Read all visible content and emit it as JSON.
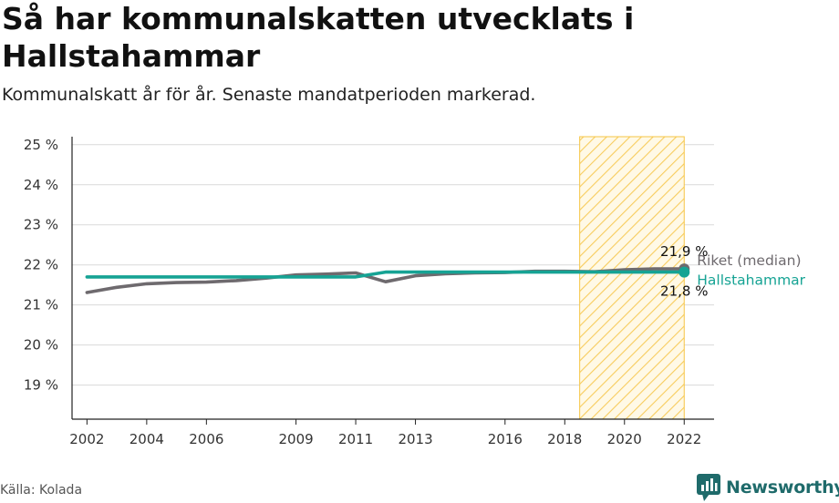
{
  "title": "Så har kommunalskatten utvecklats i Hallstahammar",
  "subtitle": "Kommunalskatt år för år. Senaste mandatperioden markerad.",
  "source": "Källa: Kolada",
  "brand": "Newsworthy",
  "colors": {
    "riket": "#6e6a6e",
    "hallstahammar": "#16a394",
    "highlight": "#f6c545",
    "grid": "#d9d9d9",
    "brand": "#1f6b6b"
  },
  "chart_data": {
    "type": "line",
    "title": "Så har kommunalskatten utvecklats i Hallstahammar",
    "xlabel": "",
    "ylabel": "",
    "ylim": [
      18.15,
      25.2
    ],
    "xlim": [
      2001.5,
      2023
    ],
    "y_ticks": [
      19,
      20,
      21,
      22,
      23,
      24,
      25
    ],
    "y_tick_labels": [
      "19 %",
      "20 %",
      "21 %",
      "22 %",
      "23 %",
      "24 %",
      "25 %"
    ],
    "x_ticks": [
      2002,
      2004,
      2006,
      2009,
      2011,
      2013,
      2016,
      2018,
      2020,
      2022
    ],
    "x_tick_labels": [
      "2002",
      "2004",
      "2006",
      "2009",
      "2011",
      "2013",
      "2016",
      "2018",
      "2020",
      "2022"
    ],
    "highlight_period": {
      "from": 2018.5,
      "to": 2022,
      "description": "Senaste mandatperioden"
    },
    "series": [
      {
        "name": "Riket (median)",
        "x": [
          2002,
          2003,
          2004,
          2005,
          2006,
          2007,
          2008,
          2009,
          2010,
          2011,
          2012,
          2013,
          2014,
          2015,
          2016,
          2017,
          2018,
          2019,
          2020,
          2021,
          2022
        ],
        "values": [
          21.31,
          21.44,
          21.53,
          21.56,
          21.57,
          21.61,
          21.67,
          21.75,
          21.77,
          21.8,
          21.58,
          21.73,
          21.78,
          21.8,
          21.81,
          21.84,
          21.84,
          21.83,
          21.88,
          21.9,
          21.9
        ],
        "end_label": "21,9 %"
      },
      {
        "name": "Hallstahammar",
        "x": [
          2002,
          2003,
          2004,
          2005,
          2006,
          2007,
          2008,
          2009,
          2010,
          2011,
          2012,
          2013,
          2014,
          2015,
          2016,
          2017,
          2018,
          2019,
          2020,
          2021,
          2022
        ],
        "values": [
          21.7,
          21.7,
          21.7,
          21.7,
          21.7,
          21.7,
          21.7,
          21.7,
          21.7,
          21.7,
          21.82,
          21.82,
          21.82,
          21.82,
          21.82,
          21.82,
          21.82,
          21.82,
          21.82,
          21.82,
          21.82
        ],
        "end_label": "21,8 %"
      }
    ]
  }
}
